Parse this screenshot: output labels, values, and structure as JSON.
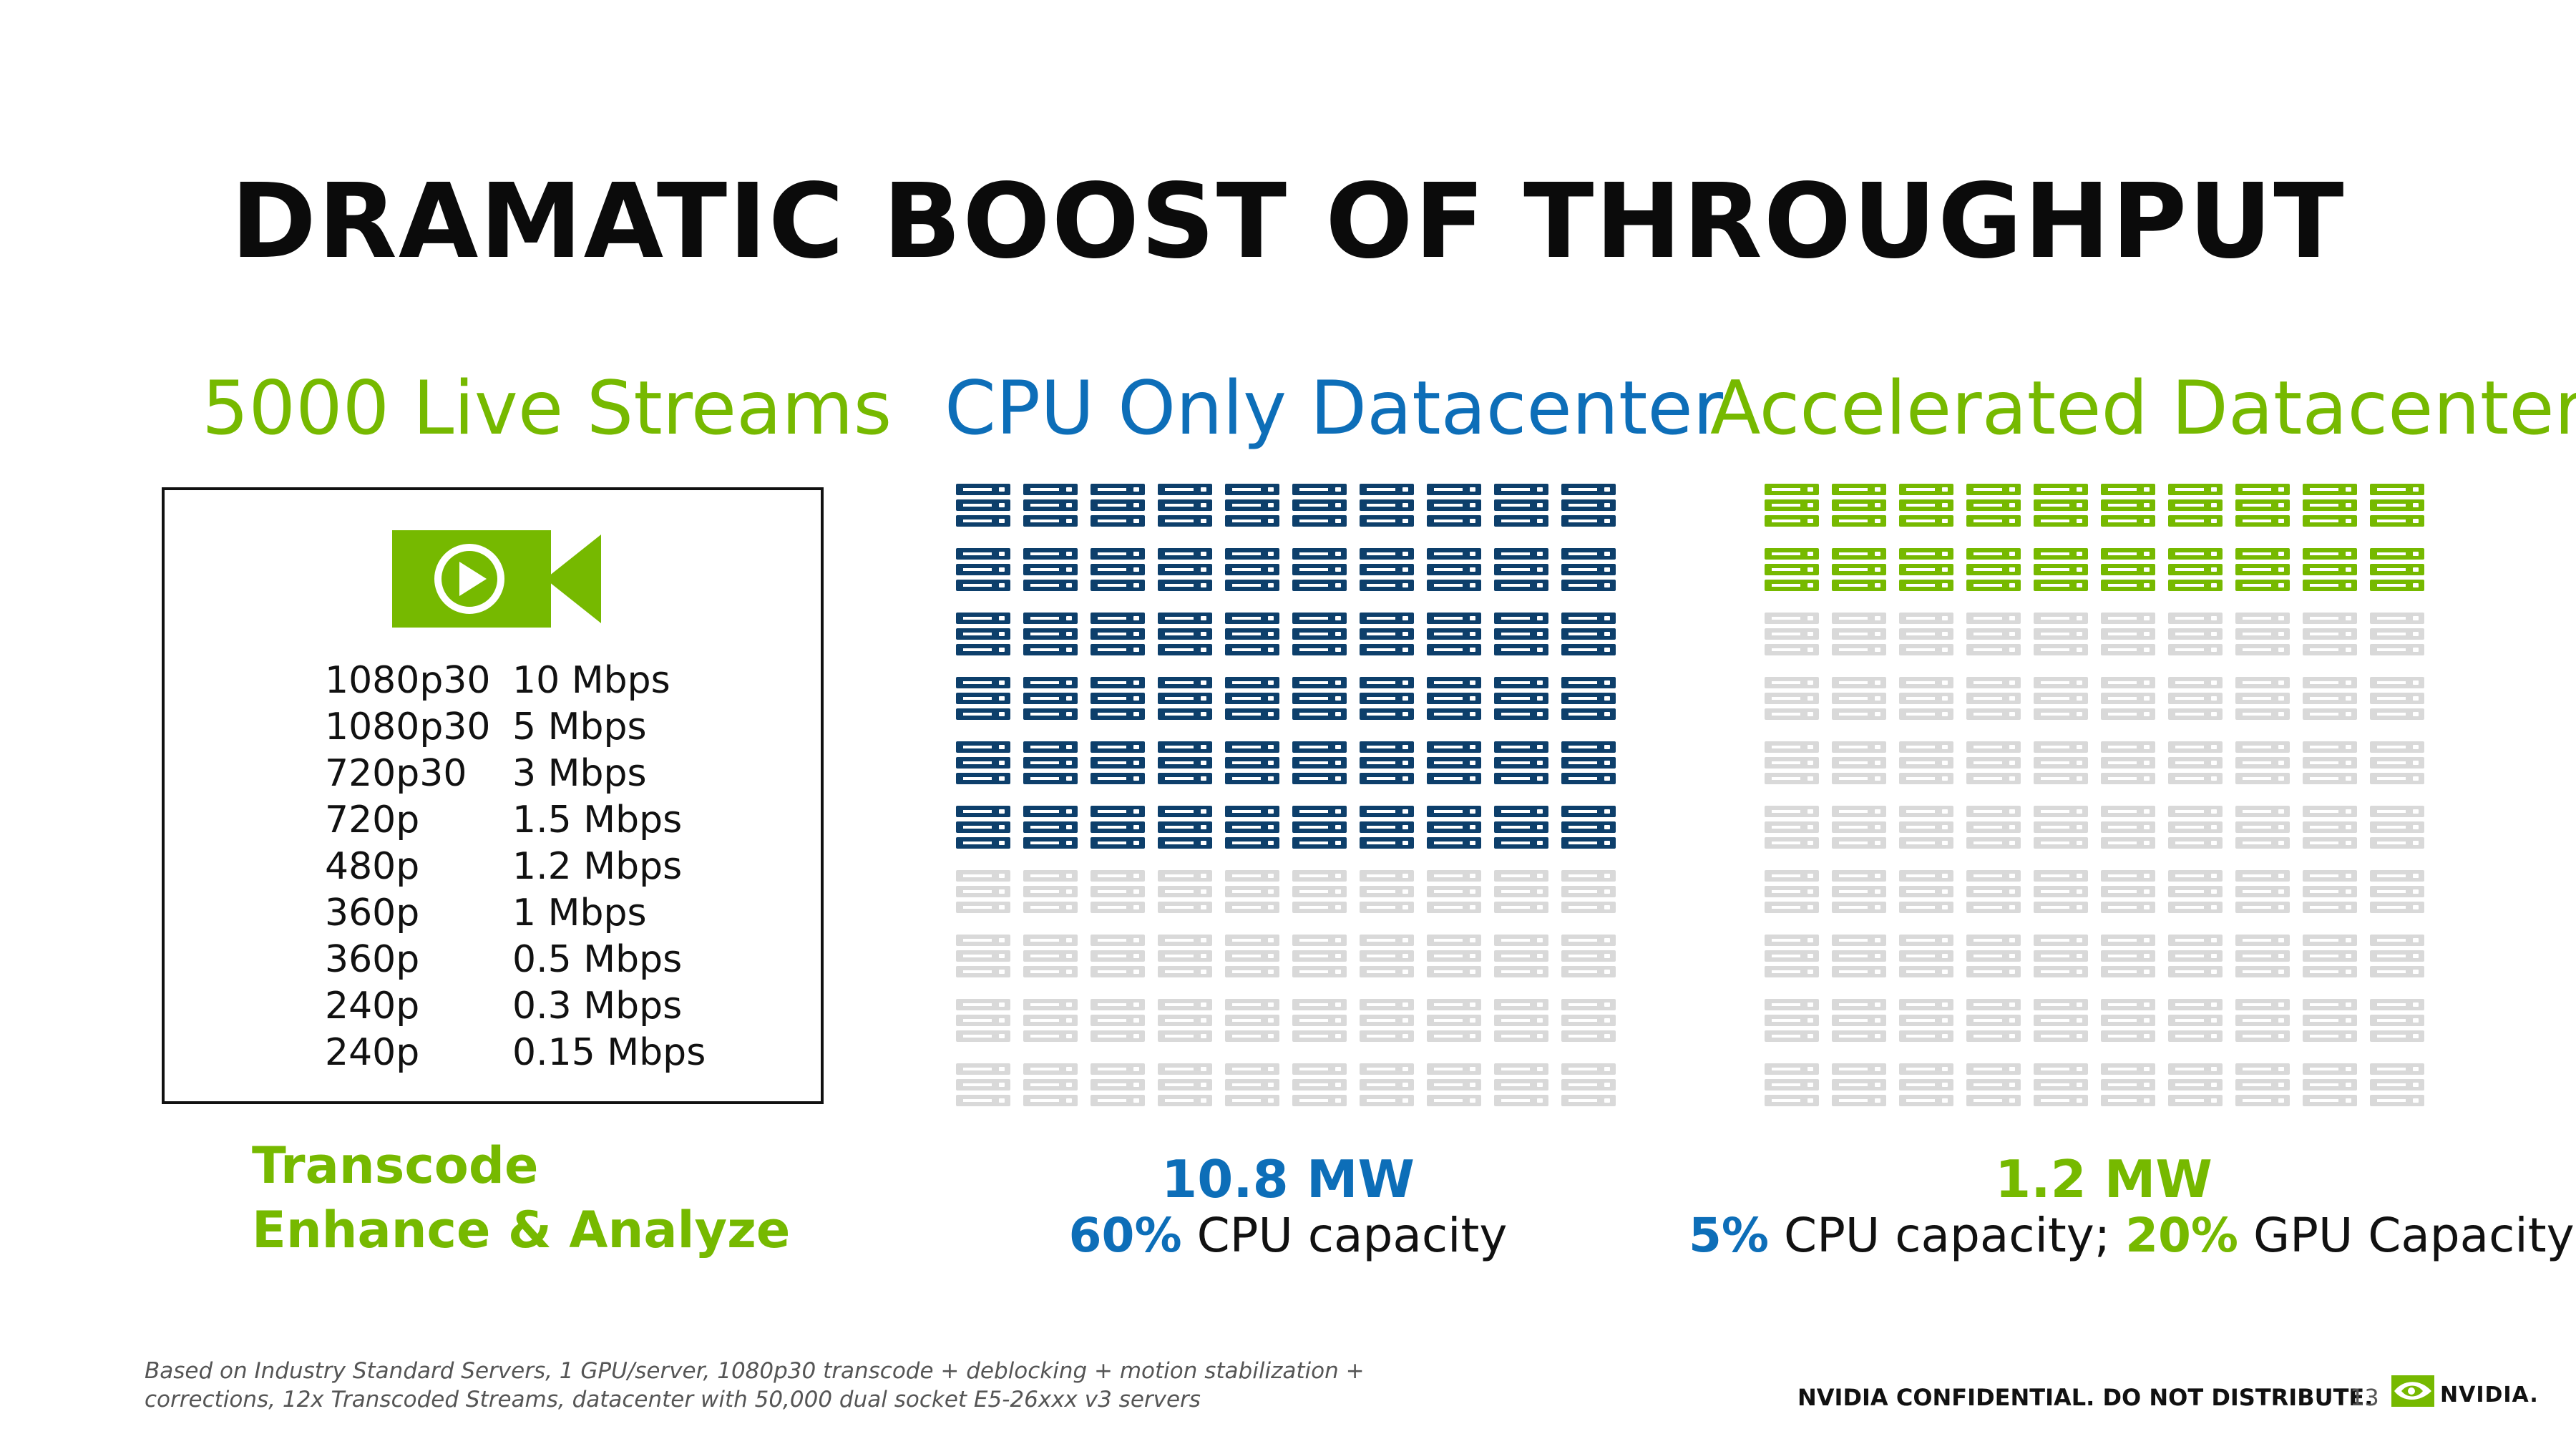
{
  "title": "DRAMATIC BOOST OF THROUGHPUT",
  "colors": {
    "green": "#76b900",
    "blue": "#0d6eb8",
    "navy": "#0d3f6b",
    "idle": "#d9d9d9"
  },
  "streams": {
    "heading": "5000 Live Streams",
    "icon": "video-camera-play-icon",
    "rows": [
      {
        "res": "1080p30",
        "rate": "10 Mbps"
      },
      {
        "res": "1080p30",
        "rate": "5 Mbps"
      },
      {
        "res": "720p30",
        "rate": "3 Mbps"
      },
      {
        "res": "720p",
        "rate": "1.5 Mbps"
      },
      {
        "res": "480p",
        "rate": "1.2 Mbps"
      },
      {
        "res": "360p",
        "rate": "1 Mbps"
      },
      {
        "res": "360p",
        "rate": "0.5 Mbps"
      },
      {
        "res": "240p",
        "rate": "0.3 Mbps"
      },
      {
        "res": "240p",
        "rate": "0.15 Mbps"
      }
    ],
    "caption_line1": "Transcode",
    "caption_line2": "Enhance & Analyze"
  },
  "cpu": {
    "heading": "CPU Only Datacenter",
    "grid": {
      "rows": 10,
      "cols": 10,
      "active_rows": 6,
      "active_color": "#0d3f6b",
      "idle_color": "#d9d9d9"
    },
    "power": "10.8 MW",
    "capacity_pct": "60%",
    "capacity_text": " CPU capacity"
  },
  "accelerated": {
    "heading": "Accelerated Datacenter",
    "grid": {
      "rows": 10,
      "cols": 10,
      "active_rows": 2,
      "active_color": "#76b900",
      "idle_color": "#d9d9d9"
    },
    "power": "1.2 MW",
    "cpu_pct": "5%",
    "cpu_text": " CPU capacity; ",
    "gpu_pct": "20%",
    "gpu_text": " GPU Capacity"
  },
  "footer": {
    "note_line1": "Based on Industry Standard Servers, 1 GPU/server, 1080p30 transcode + deblocking + motion stabilization +",
    "note_line2": "corrections, 12x Transcoded Streams, datacenter with 50,000 dual socket E5-26xxx v3 servers",
    "confidential": "NVIDIA CONFIDENTIAL. DO NOT DISTRIBUTE.",
    "page": "13",
    "logo_text": "NVIDIA."
  }
}
